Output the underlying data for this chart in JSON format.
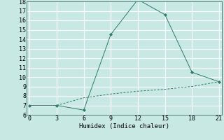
{
  "xlabel": "Humidex (Indice chaleur)",
  "x": [
    0,
    3,
    6,
    9,
    12,
    15,
    18,
    21
  ],
  "line1_y": [
    7.0,
    7.0,
    6.5,
    14.5,
    18.2,
    16.6,
    10.5,
    9.5
  ],
  "line2_y": [
    7.0,
    7.0,
    7.8,
    8.2,
    8.5,
    8.7,
    9.0,
    9.5
  ],
  "line_color": "#2a7d6a",
  "bg_color": "#c8e8e4",
  "grid_color": "#ffffff",
  "ylim": [
    6,
    18
  ],
  "xlim": [
    -0.3,
    21.3
  ],
  "yticks": [
    6,
    7,
    8,
    9,
    10,
    11,
    12,
    13,
    14,
    15,
    16,
    17,
    18
  ],
  "xticks": [
    0,
    3,
    6,
    9,
    12,
    15,
    18,
    21
  ]
}
